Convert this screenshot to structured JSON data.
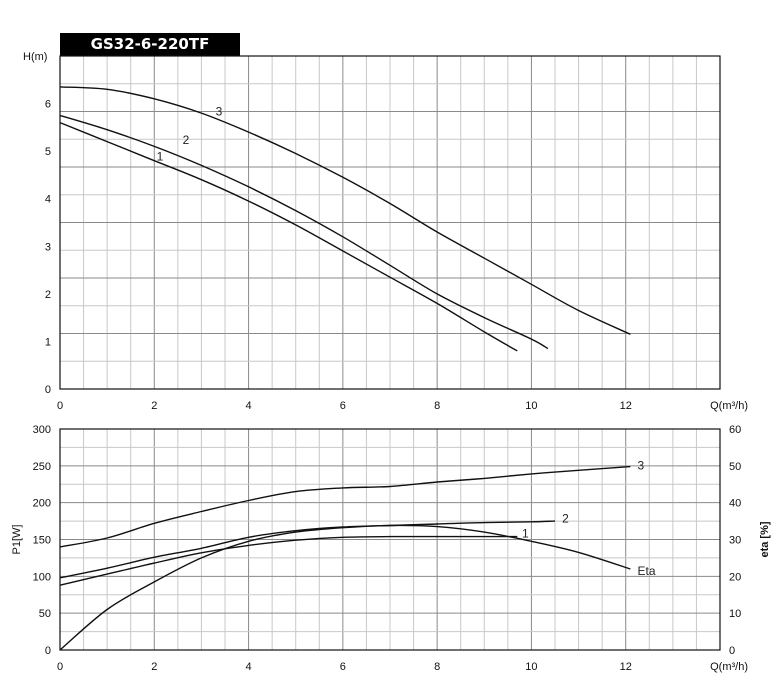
{
  "title": "GS32-6-220TF",
  "chart_data": [
    {
      "type": "line",
      "xlabel": "Q(m³/h)",
      "ylabel": "H(m)",
      "xlim": [
        0,
        14
      ],
      "ylim": [
        0,
        7
      ],
      "x_ticks": [
        "0",
        "2",
        "4",
        "6",
        "8",
        "10",
        "12"
      ],
      "y_ticks": [
        "0",
        "1",
        "2",
        "3",
        "4",
        "5",
        "6"
      ],
      "grid": true,
      "series": [
        {
          "name": "1",
          "points": [
            [
              0,
              5.6
            ],
            [
              1,
              5.2
            ],
            [
              2,
              4.8
            ],
            [
              3,
              4.4
            ],
            [
              4,
              3.95
            ],
            [
              5,
              3.45
            ],
            [
              6,
              2.9
            ],
            [
              7,
              2.35
            ],
            [
              8,
              1.8
            ],
            [
              9,
              1.2
            ],
            [
              9.7,
              0.8
            ]
          ]
        },
        {
          "name": "2",
          "points": [
            [
              0,
              5.75
            ],
            [
              1,
              5.45
            ],
            [
              2,
              5.1
            ],
            [
              3,
              4.7
            ],
            [
              4,
              4.25
            ],
            [
              5,
              3.75
            ],
            [
              6,
              3.2
            ],
            [
              7,
              2.6
            ],
            [
              8,
              2.0
            ],
            [
              9,
              1.5
            ],
            [
              10,
              1.05
            ],
            [
              10.35,
              0.85
            ]
          ]
        },
        {
          "name": "3",
          "points": [
            [
              0,
              6.35
            ],
            [
              1,
              6.3
            ],
            [
              2,
              6.1
            ],
            [
              3,
              5.8
            ],
            [
              4,
              5.4
            ],
            [
              5,
              4.95
            ],
            [
              6,
              4.45
            ],
            [
              7,
              3.9
            ],
            [
              8,
              3.3
            ],
            [
              9,
              2.75
            ],
            [
              10,
              2.2
            ],
            [
              11,
              1.65
            ],
            [
              12.1,
              1.15
            ]
          ]
        }
      ]
    },
    {
      "type": "line",
      "xlabel": "Q(m³/h)",
      "ylabel": "P1[W]",
      "ylabel_right": "eta [%]",
      "xlim": [
        0,
        14
      ],
      "ylim": [
        0,
        300
      ],
      "ylim_right": [
        0,
        60
      ],
      "x_ticks": [
        "0",
        "2",
        "4",
        "6",
        "8",
        "10",
        "12"
      ],
      "y_ticks": [
        "0",
        "50",
        "100",
        "150",
        "200",
        "250",
        "300"
      ],
      "y_ticks_right": [
        "0",
        "10",
        "20",
        "30",
        "40",
        "50",
        "60"
      ],
      "grid": true,
      "series": [
        {
          "name": "1",
          "axis": "left",
          "points": [
            [
              0,
              88
            ],
            [
              1,
              103
            ],
            [
              2,
              118
            ],
            [
              3,
              132
            ],
            [
              4,
              142
            ],
            [
              5,
              149
            ],
            [
              6,
              153
            ],
            [
              7,
              154
            ],
            [
              8,
              154
            ],
            [
              9,
              154
            ],
            [
              9.7,
              154
            ]
          ]
        },
        {
          "name": "2",
          "axis": "left",
          "points": [
            [
              0,
              98
            ],
            [
              1,
              111
            ],
            [
              2,
              126
            ],
            [
              3,
              138
            ],
            [
              4,
              153
            ],
            [
              5,
              162
            ],
            [
              6,
              167
            ],
            [
              7,
              169
            ],
            [
              8,
              171
            ],
            [
              9,
              173
            ],
            [
              10,
              174
            ],
            [
              10.5,
              175
            ]
          ]
        },
        {
          "name": "3",
          "axis": "left",
          "points": [
            [
              0,
              140
            ],
            [
              1,
              152
            ],
            [
              2,
              172
            ],
            [
              3,
              188
            ],
            [
              4,
              203
            ],
            [
              5,
              215
            ],
            [
              6,
              220
            ],
            [
              7,
              222
            ],
            [
              8,
              228
            ],
            [
              9,
              233
            ],
            [
              10,
              239
            ],
            [
              11,
              244
            ],
            [
              12.1,
              249
            ]
          ]
        },
        {
          "name": "Eta",
          "axis": "right",
          "points": [
            [
              0,
              0
            ],
            [
              1,
              11
            ],
            [
              2,
              18.5
            ],
            [
              3,
              25
            ],
            [
              4,
              29.5
            ],
            [
              5,
              32
            ],
            [
              6,
              33.2
            ],
            [
              7,
              33.8
            ],
            [
              8,
              33.5
            ],
            [
              9,
              32
            ],
            [
              10,
              29.5
            ],
            [
              11,
              26.5
            ],
            [
              12.1,
              22
            ]
          ]
        }
      ]
    }
  ]
}
